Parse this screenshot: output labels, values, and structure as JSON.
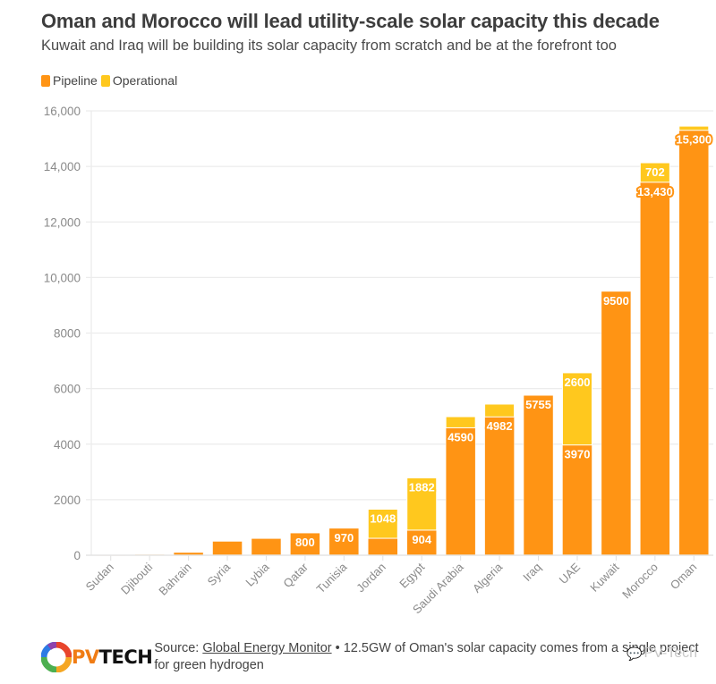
{
  "header": {
    "title": "Oman and Morocco will lead utility-scale solar capacity this decade",
    "subtitle": "Kuwait and Iraq will be building its solar capacity from scratch and be at the forefront too"
  },
  "legend": [
    {
      "label": "Pipeline",
      "color": "#ff9414"
    },
    {
      "label": "Operational",
      "color": "#ffc81e"
    }
  ],
  "footer": {
    "logo_pv": "PV",
    "logo_tech": "TECH",
    "source_prefix": "Source: ",
    "source_link": "Global Energy Monitor",
    "source_note": " • 12.5GW of Oman's solar capacity comes from a single project for green hydrogen",
    "watermark": "PV-Tech"
  },
  "chart_data": {
    "type": "bar",
    "stacked": true,
    "title": "Oman and Morocco will lead utility-scale solar capacity this decade",
    "subtitle": "Kuwait and Iraq will be building its solar capacity from scratch and be at the forefront too",
    "xlabel": "",
    "ylabel": "",
    "ylim": [
      0,
      16000
    ],
    "yticks": [
      0,
      2000,
      4000,
      6000,
      8000,
      10000,
      12000,
      14000,
      16000
    ],
    "ytick_labels": [
      "0",
      "2000",
      "4000",
      "6000",
      "8000",
      "10,000",
      "12,000",
      "14,000",
      "16,000"
    ],
    "grid": true,
    "legend_position": "top-left",
    "categories": [
      "Sudan",
      "Djibouti",
      "Bahrain",
      "Syria",
      "Lybia",
      "Qatar",
      "Tunisia",
      "Jordan",
      "Egypt",
      "Saudi Arabia",
      "Algeria",
      "Iraq",
      "UAE",
      "Kuwait",
      "Morocco",
      "Oman"
    ],
    "series": [
      {
        "name": "Pipeline",
        "color": "#ff9414",
        "values": [
          5,
          30,
          100,
          500,
          600,
          800,
          970,
          610,
          904,
          4590,
          4982,
          5755,
          3970,
          9500,
          13430,
          15300
        ],
        "labels": [
          null,
          null,
          null,
          null,
          null,
          "800",
          "970",
          null,
          "904",
          "4590",
          "4982",
          "5755",
          "3970",
          "9500",
          "13,430",
          "15,300"
        ]
      },
      {
        "name": "Operational",
        "color": "#ffc81e",
        "values": [
          0,
          0,
          0,
          0,
          0,
          0,
          0,
          1048,
          1882,
          400,
          460,
          0,
          2600,
          0,
          702,
          150
        ],
        "labels": [
          null,
          null,
          null,
          null,
          null,
          null,
          null,
          "1048",
          "1882",
          null,
          null,
          null,
          "2600",
          null,
          "702",
          null
        ]
      }
    ]
  }
}
